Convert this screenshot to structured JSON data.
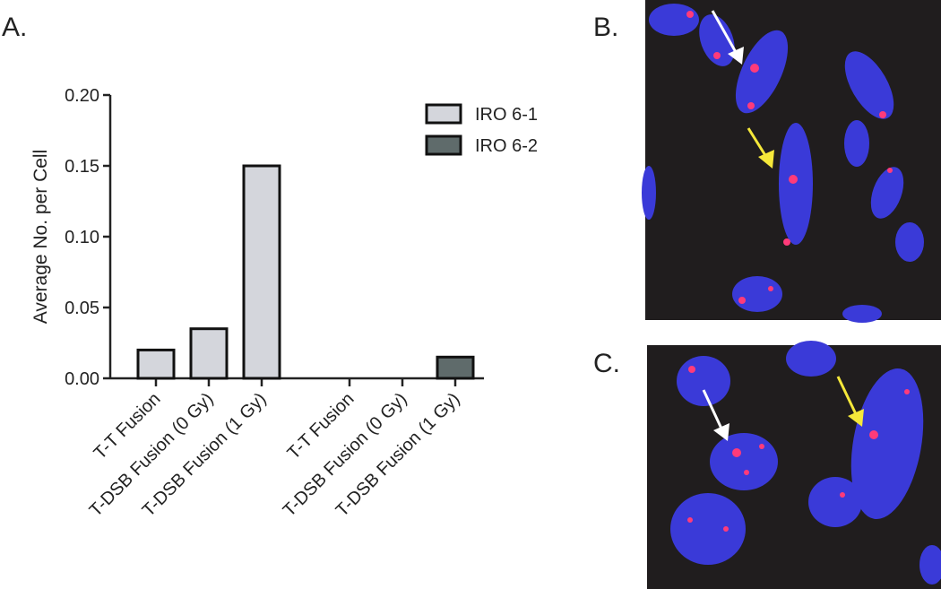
{
  "panels": {
    "a": "A.",
    "b": "B.",
    "c": "C."
  },
  "chart_data": {
    "type": "bar",
    "ylabel": "Average No. per Cell",
    "categories": [
      "T-T Fusion",
      "T-DSB Fusion (0 Gy)",
      "T-DSB Fusion (1 Gy)",
      "T-T Fusion",
      "T-DSB Fusion (0 Gy)",
      "T-DSB Fusion (1 Gy)"
    ],
    "series": [
      {
        "name": "IRO 6-1",
        "color": "#d4d6dc",
        "values": [
          0.02,
          0.035,
          0.15,
          null,
          null,
          null
        ]
      },
      {
        "name": "IRO 6-2",
        "color": "#5f6b6b",
        "values": [
          null,
          null,
          null,
          0,
          0,
          0.015
        ]
      }
    ],
    "ylim": [
      0,
      0.2
    ],
    "yticks": [
      {
        "value": 0,
        "label": "0.00"
      },
      {
        "value": 0.05,
        "label": "0.05"
      },
      {
        "value": 0.1,
        "label": "0.10"
      },
      {
        "value": 0.15,
        "label": "0.15"
      },
      {
        "value": 0.2,
        "label": "0.20"
      }
    ],
    "legend": "top-right"
  }
}
